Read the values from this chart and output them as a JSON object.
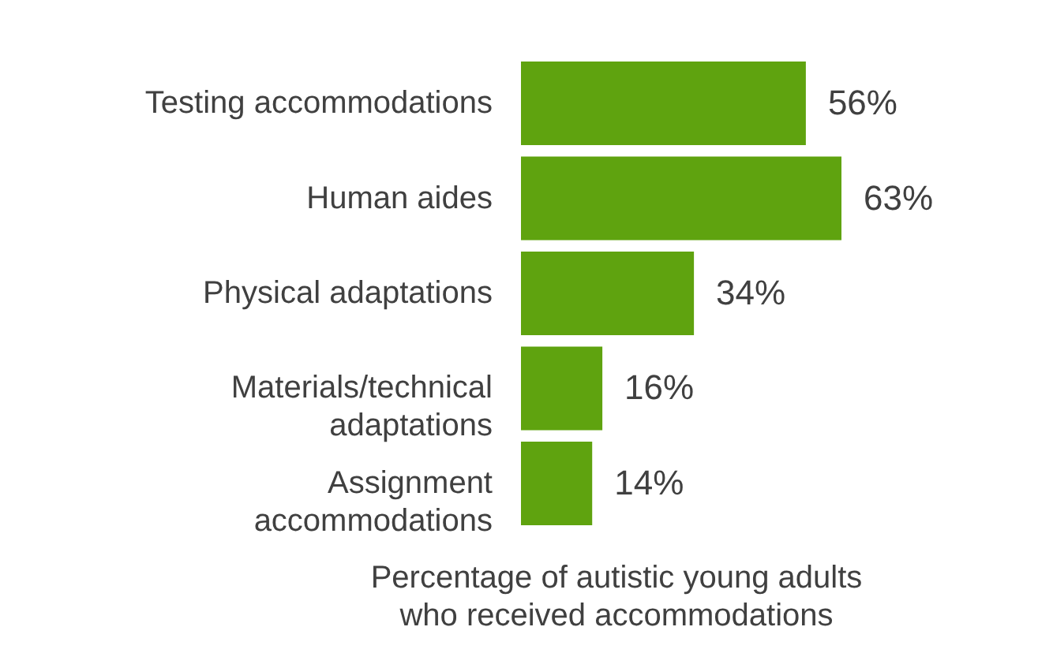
{
  "chart_data": {
    "type": "bar",
    "orientation": "horizontal",
    "categories": [
      "Testing accommodations",
      "Human aides",
      "Physical adaptations",
      "Materials/technical\nadaptations",
      "Assignment\naccommodations"
    ],
    "values": [
      56,
      63,
      34,
      16,
      14
    ],
    "color": "#5fa30f",
    "data_labels": true,
    "value_labels": [
      "56%",
      "63%",
      "34%",
      "16%",
      "14%"
    ],
    "xlabel": "Percentage of autistic young adults who received accommodations",
    "grid": false
  }
}
